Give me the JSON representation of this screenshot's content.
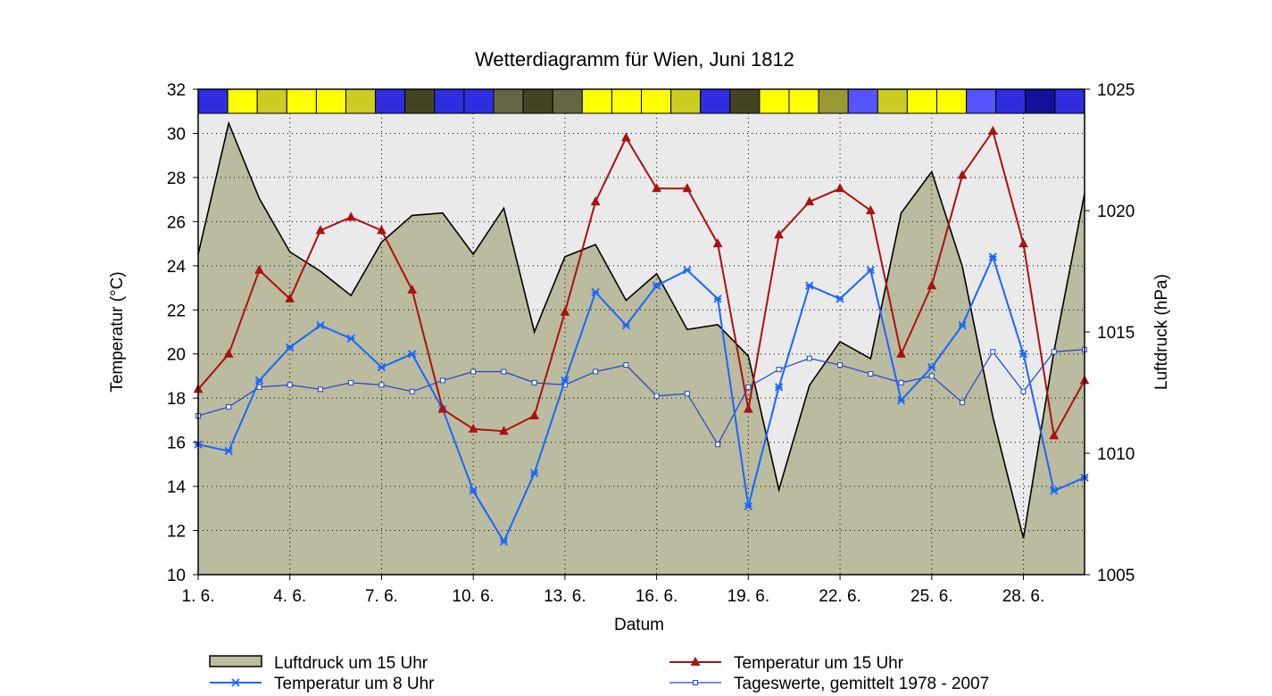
{
  "chart_data": {
    "type": "line",
    "title": "Wetterdiagramm für Wien, Juni 1812",
    "xlabel": "Datum",
    "ylabel_left": "Temperatur (°C)",
    "ylabel_right": "Luftdruck (hPa)",
    "ylim_left": [
      10,
      32
    ],
    "ylim_right": [
      1005,
      1025
    ],
    "xlim": [
      1,
      30
    ],
    "left_ticks": [
      10,
      12,
      14,
      16,
      18,
      20,
      22,
      24,
      26,
      28,
      30,
      32
    ],
    "right_ticks": [
      1005,
      1010,
      1015,
      1020,
      1025
    ],
    "x_ticks": [
      {
        "day": 1,
        "label": "1. 6."
      },
      {
        "day": 4,
        "label": "4. 6."
      },
      {
        "day": 7,
        "label": "7. 6."
      },
      {
        "day": 10,
        "label": "10. 6."
      },
      {
        "day": 13,
        "label": "13. 6."
      },
      {
        "day": 16,
        "label": "16. 6."
      },
      {
        "day": 19,
        "label": "19. 6."
      },
      {
        "day": 22,
        "label": "22. 6."
      },
      {
        "day": 25,
        "label": "25. 6."
      },
      {
        "day": 28,
        "label": "28. 6."
      }
    ],
    "grid": true,
    "days": [
      1,
      2,
      3,
      4,
      5,
      6,
      7,
      8,
      9,
      10,
      11,
      12,
      13,
      14,
      15,
      16,
      17,
      18,
      19,
      20,
      21,
      22,
      23,
      24,
      25,
      26,
      27,
      28,
      29,
      30
    ],
    "series": [
      {
        "name": "Luftdruck um 15 Uhr",
        "kind": "area",
        "axis": "right",
        "color": "#bbbb9f",
        "values": [
          1018.2,
          1023.6,
          1020.5,
          1018.3,
          1017.5,
          1016.5,
          1018.7,
          1019.8,
          1019.9,
          1018.2,
          1020.1,
          1015.0,
          1018.1,
          1018.6,
          1016.3,
          1017.4,
          1015.1,
          1015.3,
          1014.0,
          1008.5,
          1012.8,
          1014.6,
          1013.9,
          1019.9,
          1021.6,
          1017.7,
          1011.5,
          1006.5,
          1014.2,
          1020.7
        ]
      },
      {
        "name": "Temperatur um 15 Uhr",
        "kind": "line",
        "axis": "left",
        "color": "#aa1111",
        "marker": "triangle",
        "values": [
          18.4,
          20.0,
          23.8,
          22.5,
          25.6,
          26.2,
          25.6,
          22.9,
          17.5,
          16.6,
          16.5,
          17.2,
          21.9,
          26.9,
          29.8,
          27.5,
          27.5,
          25.0,
          17.5,
          25.4,
          26.9,
          27.5,
          26.5,
          20.0,
          23.1,
          28.1,
          30.1,
          25.0,
          16.3,
          18.8
        ]
      },
      {
        "name": "Temperatur um 8 Uhr",
        "kind": "line",
        "axis": "left",
        "color": "#1a66ff",
        "marker": "x",
        "values": [
          15.9,
          15.6,
          18.8,
          20.3,
          21.3,
          20.7,
          19.4,
          20.0,
          17.5,
          13.8,
          11.5,
          14.6,
          18.8,
          22.8,
          21.3,
          23.1,
          23.8,
          22.5,
          13.1,
          18.5,
          23.1,
          22.5,
          23.8,
          17.9,
          19.4,
          21.3,
          24.4,
          20.0,
          13.8,
          14.4
        ]
      },
      {
        "name": "Tageswerte, gemittelt 1978 - 2007",
        "kind": "line",
        "axis": "left",
        "color": "#2244cc",
        "marker": "square",
        "values": [
          17.2,
          17.6,
          18.5,
          18.6,
          18.4,
          18.7,
          18.6,
          18.3,
          18.8,
          19.2,
          19.2,
          18.7,
          18.6,
          19.2,
          19.5,
          18.1,
          18.2,
          15.9,
          18.5,
          19.3,
          19.8,
          19.5,
          19.1,
          18.7,
          19.0,
          17.8,
          20.1,
          18.3,
          20.1,
          20.2
        ]
      }
    ],
    "cloud_strip": {
      "colors": [
        "#2e2ee0",
        "#ffff00",
        "#cccc22",
        "#ffff00",
        "#ffff00",
        "#cccc22",
        "#2e2ee0",
        "#444422",
        "#2e2ee0",
        "#2e2ee0",
        "#666644",
        "#444422",
        "#666644",
        "#ffff00",
        "#ffff00",
        "#ffff00",
        "#cccc22",
        "#2e2ee0",
        "#444422",
        "#ffff00",
        "#ffff00",
        "#999933",
        "#5555ff",
        "#cccc22",
        "#ffff00",
        "#ffff00",
        "#5555ff",
        "#2e2ee0",
        "#111199",
        "#2e2ee0"
      ]
    },
    "legend": {
      "placement": "bottom",
      "entries": [
        {
          "label": "Luftdruck um 15 Uhr",
          "kind": "area"
        },
        {
          "label": "Temperatur um 15 Uhr",
          "kind": "line"
        },
        {
          "label": "Temperatur um 8 Uhr",
          "kind": "line"
        },
        {
          "label": "Tageswerte, gemittelt 1978 - 2007",
          "kind": "line"
        }
      ]
    },
    "colors": {
      "plot_background": "#eaeaea",
      "area_fill": "#bbbb9f",
      "area_stroke": "#000000",
      "grid": "#000000"
    }
  }
}
